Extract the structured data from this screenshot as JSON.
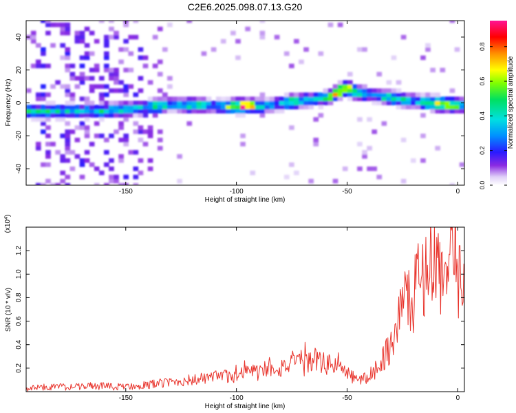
{
  "title": "C2E6.2025.098.07.13.G20",
  "chart_data": [
    {
      "type": "heatmap",
      "xlabel": "Height of straight line (km)",
      "ylabel": "Frequency (Hz)",
      "xlim": [
        -195,
        3
      ],
      "ylim": [
        -50,
        50
      ],
      "xticks": [
        -150,
        -100,
        -50,
        0
      ],
      "yticks": [
        -40,
        -20,
        0,
        20,
        40
      ],
      "colorbar": {
        "label": "Normalized spectral amplitude",
        "range": [
          0,
          0.95
        ],
        "ticks": [
          0.0,
          0.2,
          0.4,
          0.6,
          0.8
        ]
      },
      "ridge": [
        {
          "x": -195,
          "y": -5
        },
        {
          "x": -160,
          "y": -5
        },
        {
          "x": -145,
          "y": -3
        },
        {
          "x": -130,
          "y": -1
        },
        {
          "x": -110,
          "y": -2
        },
        {
          "x": -90,
          "y": -2
        },
        {
          "x": -75,
          "y": 1
        },
        {
          "x": -60,
          "y": 3
        },
        {
          "x": -52,
          "y": 9
        },
        {
          "x": -45,
          "y": 6
        },
        {
          "x": -35,
          "y": 4
        },
        {
          "x": -20,
          "y": 1
        },
        {
          "x": -5,
          "y": -1
        },
        {
          "x": 3,
          "y": -2
        }
      ]
    },
    {
      "type": "line",
      "xlabel": "Height of straight line (km)",
      "ylabel": "SNR (10 * v/v)",
      "yunit": "(x10^4)",
      "xlim": [
        -195,
        3
      ],
      "ylim": [
        0,
        1.4
      ],
      "xticks": [
        -150,
        -100,
        -50,
        0
      ],
      "yticks": [
        0.2,
        0.4,
        0.6,
        0.8,
        1.0,
        1.2
      ],
      "color": "#e8322a",
      "series": [
        {
          "x": [
            -195,
            -185,
            -175,
            -165,
            -155,
            -145,
            -140,
            -130,
            -120,
            -110,
            -100,
            -95,
            -90,
            -85,
            -80,
            -75,
            -70,
            -65,
            -60,
            -55,
            -50,
            -45,
            -40,
            -35,
            -30,
            -27,
            -24,
            -21,
            -18,
            -15,
            -12,
            -9,
            -6,
            -3,
            0,
            3
          ],
          "y": [
            0.03,
            0.04,
            0.04,
            0.05,
            0.04,
            0.05,
            0.06,
            0.08,
            0.1,
            0.12,
            0.14,
            0.18,
            0.16,
            0.22,
            0.2,
            0.25,
            0.22,
            0.28,
            0.23,
            0.24,
            0.15,
            0.1,
            0.12,
            0.25,
            0.4,
            0.6,
            0.85,
            0.7,
            0.95,
            1.0,
            1.15,
            1.05,
            0.95,
            1.1,
            0.9,
            1.1
          ]
        }
      ]
    }
  ]
}
